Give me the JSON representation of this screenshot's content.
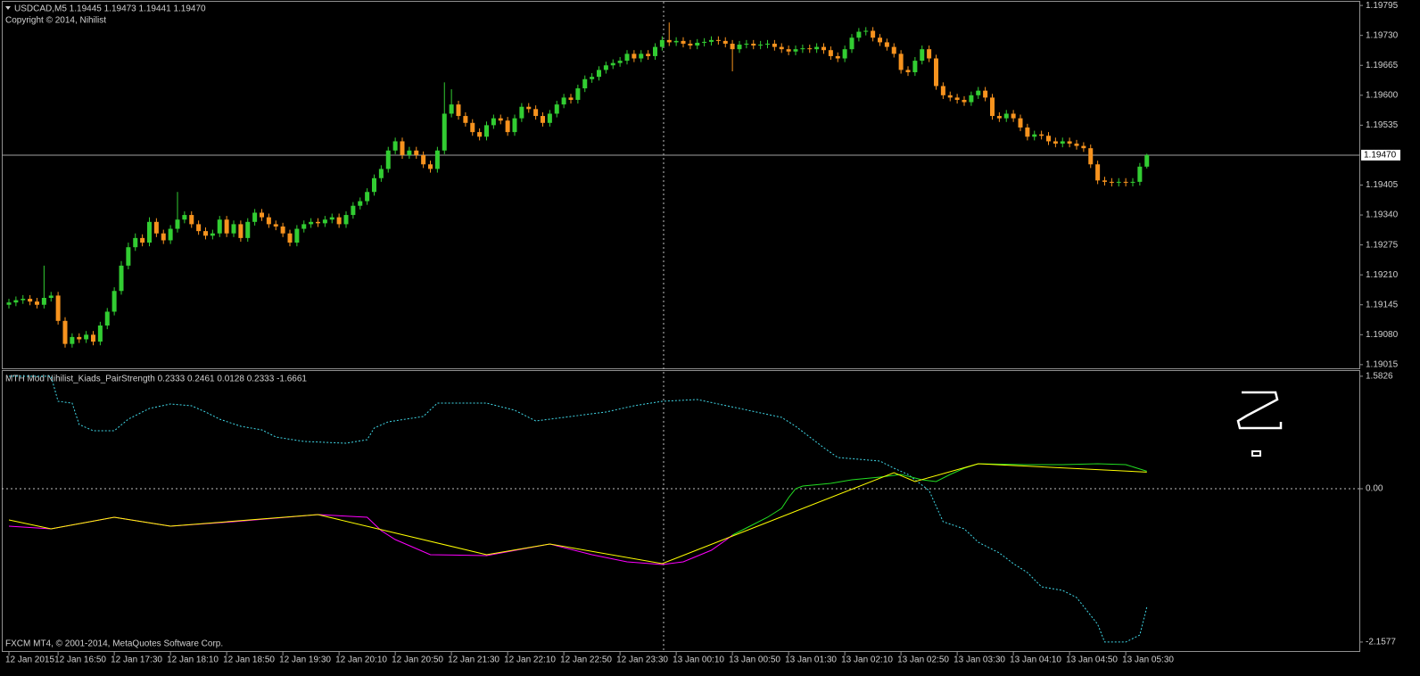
{
  "chart_data": [
    {
      "type": "candlestick",
      "title": "USDCAD,M5  1.19445 1.19473 1.19441 1.19470",
      "subtitle": "Copyright © 2014, Nihilist",
      "up_color": "#32cd32",
      "down_color": "#f7931e",
      "ylim": [
        1.19007,
        1.19803
      ],
      "yticks": [
        1.19795,
        {
          "value": 1.1973,
          "label": "1.19730"
        },
        1.19665,
        {
          "value": 1.196,
          "label": "1.19600"
        },
        1.19535,
        1.19405,
        {
          "value": 1.1934,
          "label": "1.19340"
        },
        1.19275,
        {
          "value": 1.1921,
          "label": "1.19210"
        },
        1.19145,
        {
          "value": 1.1908,
          "label": "1.19080"
        },
        1.19015
      ],
      "bid_line": {
        "value": 1.1947,
        "label": "1.19470"
      },
      "open": [
        1.19145,
        1.1915,
        1.19155,
        1.19158,
        1.19152,
        1.19145,
        1.1916,
        1.19165,
        1.1911,
        1.1906,
        1.19075,
        1.1907,
        1.1908,
        1.19065,
        1.191,
        1.1913,
        1.19175,
        1.1923,
        1.1927,
        1.1929,
        1.1928,
        1.19325,
        1.193,
        1.19285,
        1.1931,
        1.1933,
        1.1934,
        1.1932,
        1.19305,
        1.19295,
        1.193,
        1.1933,
        1.193,
        1.1932,
        1.1929,
        1.19325,
        1.19345,
        1.19335,
        1.1932,
        1.19315,
        1.193,
        1.1928,
        1.1931,
        1.1932,
        1.19325,
        1.19322,
        1.1933,
        1.19335,
        1.1932,
        1.1934,
        1.1936,
        1.1937,
        1.1939,
        1.1942,
        1.1944,
        1.1948,
        1.195,
        1.1947,
        1.1948,
        1.1947,
        1.1945,
        1.1944,
        1.1948,
        1.1956,
        1.1958,
        1.19555,
        1.1954,
        1.1952,
        1.1951,
        1.19535,
        1.1955,
        1.19545,
        1.1952,
        1.1955,
        1.19575,
        1.1957,
        1.19555,
        1.1954,
        1.1956,
        1.1958,
        1.19595,
        1.1959,
        1.19615,
        1.19635,
        1.1964,
        1.19655,
        1.19665,
        1.1967,
        1.19675,
        1.1969,
        1.1968,
        1.1969,
        1.19685,
        1.19705,
        1.1972,
        1.19715,
        1.19718,
        1.19712,
        1.19708,
        1.19714,
        1.19716,
        1.1972,
        1.19718,
        1.19712,
        1.197,
        1.1971,
        1.19712,
        1.19708,
        1.1971,
        1.19712,
        1.19705,
        1.197,
        1.19695,
        1.197,
        1.19702,
        1.197,
        1.19705,
        1.19698,
        1.19685,
        1.1968,
        1.197,
        1.19725,
        1.19738,
        1.1974,
        1.19725,
        1.19715,
        1.19705,
        1.1969,
        1.19655,
        1.1965,
        1.19675,
        1.197,
        1.1968,
        1.1962,
        1.196,
        1.19595,
        1.1959,
        1.19585,
        1.196,
        1.1961,
        1.19595,
        1.19555,
        1.1955,
        1.1956,
        1.1955,
        1.1953,
        1.1951,
        1.19515,
        1.19512,
        1.195,
        1.19495,
        1.195,
        1.19495,
        1.1949,
        1.19485,
        1.1945,
        1.19415,
        1.19412,
        1.1941,
        1.19412,
        1.1941,
        1.19412,
        1.19445
      ],
      "high": [
        1.19158,
        1.19163,
        1.19166,
        1.19166,
        1.1916,
        1.1923,
        1.19173,
        1.19173,
        1.19118,
        1.19083,
        1.19083,
        1.19088,
        1.19088,
        1.19108,
        1.19138,
        1.19183,
        1.1924,
        1.1928,
        1.193,
        1.19298,
        1.19335,
        1.19333,
        1.19308,
        1.19318,
        1.1939,
        1.19348,
        1.19348,
        1.19328,
        1.19313,
        1.19308,
        1.19338,
        1.19338,
        1.19328,
        1.19328,
        1.19333,
        1.19353,
        1.19353,
        1.19343,
        1.19328,
        1.19323,
        1.19308,
        1.19318,
        1.19328,
        1.19333,
        1.19333,
        1.19338,
        1.19343,
        1.19343,
        1.19348,
        1.19368,
        1.19378,
        1.19398,
        1.19428,
        1.19448,
        1.19488,
        1.19508,
        1.19508,
        1.19488,
        1.19488,
        1.19478,
        1.19458,
        1.19488,
        1.19628,
        1.19613,
        1.19588,
        1.19563,
        1.19548,
        1.19528,
        1.19543,
        1.19558,
        1.19558,
        1.19553,
        1.19558,
        1.19583,
        1.19583,
        1.19578,
        1.19563,
        1.19568,
        1.19588,
        1.19603,
        1.19603,
        1.19623,
        1.19643,
        1.19648,
        1.19663,
        1.19673,
        1.19678,
        1.19683,
        1.19698,
        1.19698,
        1.19698,
        1.19698,
        1.19713,
        1.19728,
        1.19758,
        1.19726,
        1.19726,
        1.1972,
        1.19722,
        1.19724,
        1.19728,
        1.19728,
        1.19726,
        1.1972,
        1.19718,
        1.1972,
        1.1972,
        1.19718,
        1.1972,
        1.1972,
        1.19713,
        1.19708,
        1.19708,
        1.1971,
        1.1971,
        1.19713,
        1.19713,
        1.19706,
        1.19693,
        1.19708,
        1.19733,
        1.19746,
        1.19748,
        1.19748,
        1.19733,
        1.19723,
        1.19713,
        1.19698,
        1.19663,
        1.19683,
        1.19708,
        1.19708,
        1.19688,
        1.19628,
        1.19608,
        1.19603,
        1.19598,
        1.19608,
        1.19618,
        1.19618,
        1.19603,
        1.19563,
        1.19568,
        1.19568,
        1.19558,
        1.19538,
        1.19523,
        1.19523,
        1.1952,
        1.19508,
        1.19508,
        1.19508,
        1.19503,
        1.19498,
        1.19493,
        1.19458,
        1.19423,
        1.1942,
        1.1942,
        1.1942,
        1.1942,
        1.19453,
        1.19473
      ],
      "low": [
        1.19137,
        1.19142,
        1.19147,
        1.19144,
        1.19137,
        1.19137,
        1.19152,
        1.19102,
        1.19052,
        1.19052,
        1.19062,
        1.19062,
        1.19057,
        1.19057,
        1.19092,
        1.19122,
        1.19167,
        1.19222,
        1.19262,
        1.19272,
        1.19272,
        1.19292,
        1.19277,
        1.19277,
        1.19302,
        1.19322,
        1.19312,
        1.19297,
        1.19287,
        1.19287,
        1.19292,
        1.19292,
        1.19292,
        1.19282,
        1.19282,
        1.19317,
        1.19327,
        1.19312,
        1.19307,
        1.19292,
        1.19272,
        1.19272,
        1.19302,
        1.19312,
        1.19314,
        1.19314,
        1.19322,
        1.19312,
        1.19312,
        1.19332,
        1.19352,
        1.19362,
        1.19382,
        1.19412,
        1.19432,
        1.19472,
        1.19462,
        1.19462,
        1.19462,
        1.19442,
        1.19432,
        1.19432,
        1.19472,
        1.19552,
        1.19547,
        1.19532,
        1.19512,
        1.19502,
        1.19502,
        1.19527,
        1.19537,
        1.19512,
        1.19512,
        1.19542,
        1.19562,
        1.19547,
        1.19532,
        1.19532,
        1.19552,
        1.19572,
        1.19582,
        1.19582,
        1.19607,
        1.19627,
        1.19632,
        1.19647,
        1.19657,
        1.19662,
        1.19667,
        1.19672,
        1.19672,
        1.19677,
        1.19677,
        1.19697,
        1.19707,
        1.19707,
        1.19704,
        1.197,
        1.197,
        1.19706,
        1.19708,
        1.1971,
        1.19704,
        1.19652,
        1.19692,
        1.19702,
        1.197,
        1.197,
        1.19702,
        1.19697,
        1.19692,
        1.19687,
        1.19687,
        1.19692,
        1.19692,
        1.19692,
        1.1969,
        1.19677,
        1.19672,
        1.19672,
        1.19692,
        1.19717,
        1.1973,
        1.19717,
        1.19707,
        1.19697,
        1.19682,
        1.19647,
        1.19642,
        1.19642,
        1.19667,
        1.19672,
        1.19612,
        1.19592,
        1.19587,
        1.19582,
        1.19577,
        1.19577,
        1.19592,
        1.19587,
        1.19547,
        1.19542,
        1.19542,
        1.19542,
        1.19522,
        1.19502,
        1.19502,
        1.19504,
        1.19492,
        1.19487,
        1.19487,
        1.19487,
        1.19482,
        1.19477,
        1.19442,
        1.19407,
        1.19404,
        1.19402,
        1.19402,
        1.19402,
        1.19402,
        1.19404,
        1.19441
      ],
      "close": [
        1.1915,
        1.19155,
        1.19158,
        1.19152,
        1.19145,
        1.1916,
        1.19165,
        1.1911,
        1.1906,
        1.19075,
        1.1907,
        1.1908,
        1.19065,
        1.191,
        1.1913,
        1.19175,
        1.1923,
        1.1927,
        1.1929,
        1.1928,
        1.19325,
        1.193,
        1.19285,
        1.1931,
        1.1933,
        1.1934,
        1.1932,
        1.19305,
        1.19295,
        1.193,
        1.1933,
        1.193,
        1.1932,
        1.1929,
        1.19325,
        1.19345,
        1.19335,
        1.1932,
        1.19315,
        1.193,
        1.1928,
        1.1931,
        1.1932,
        1.19325,
        1.19322,
        1.1933,
        1.19335,
        1.1932,
        1.1934,
        1.1936,
        1.1937,
        1.1939,
        1.1942,
        1.1944,
        1.1948,
        1.195,
        1.1947,
        1.1948,
        1.1947,
        1.1945,
        1.1944,
        1.1948,
        1.1956,
        1.1958,
        1.19555,
        1.1954,
        1.1952,
        1.1951,
        1.19535,
        1.1955,
        1.19545,
        1.1952,
        1.1955,
        1.19575,
        1.1957,
        1.19555,
        1.1954,
        1.1956,
        1.1958,
        1.19595,
        1.1959,
        1.19615,
        1.19635,
        1.1964,
        1.19655,
        1.19665,
        1.1967,
        1.19675,
        1.1969,
        1.1968,
        1.1969,
        1.19685,
        1.19705,
        1.1972,
        1.19715,
        1.19718,
        1.19712,
        1.19708,
        1.19714,
        1.19716,
        1.1972,
        1.19718,
        1.19712,
        1.197,
        1.1971,
        1.19712,
        1.19708,
        1.1971,
        1.19712,
        1.19705,
        1.197,
        1.19695,
        1.197,
        1.19702,
        1.197,
        1.19705,
        1.19698,
        1.19685,
        1.1968,
        1.197,
        1.19725,
        1.19738,
        1.1974,
        1.19725,
        1.19715,
        1.19705,
        1.1969,
        1.19655,
        1.1965,
        1.19675,
        1.197,
        1.1968,
        1.1962,
        1.196,
        1.19595,
        1.1959,
        1.19585,
        1.196,
        1.1961,
        1.19595,
        1.19555,
        1.1955,
        1.1956,
        1.1955,
        1.1953,
        1.1951,
        1.19515,
        1.19512,
        1.195,
        1.19495,
        1.195,
        1.19495,
        1.1949,
        1.19485,
        1.1945,
        1.19415,
        1.19412,
        1.1941,
        1.19412,
        1.1941,
        1.19412,
        1.19445,
        1.1947
      ]
    },
    {
      "type": "line",
      "title": "MTH Mod Nihilist_Kiads_PairStrength 0.2333 0.2461 0.0128 0.2333 -1.6661",
      "footer": "FXCM MT4, © 2001-2014, MetaQuotes Software Corp.",
      "ylim": [
        -2.284,
        1.669
      ],
      "yticks": [
        1.5826,
        {
          "value": 0,
          "label": "0.00"
        },
        -2.1577
      ],
      "levels": [
        0
      ],
      "xlim": [
        -1.016,
        192.254
      ],
      "xticks": [
        {
          "value": 0,
          "label": "12 Jan 2015"
        },
        {
          "value": 7,
          "label": "12 Jan 16:50"
        },
        {
          "value": 15,
          "label": "12 Jan 17:30"
        },
        {
          "value": 23,
          "label": "12 Jan 18:10"
        },
        {
          "value": 31,
          "label": "12 Jan 18:50"
        },
        {
          "value": 39,
          "label": "12 Jan 19:30"
        },
        {
          "value": 47,
          "label": "12 Jan 20:10"
        },
        {
          "value": 55,
          "label": "12 Jan 20:50"
        },
        {
          "value": 63,
          "label": "12 Jan 21:30"
        },
        {
          "value": 71,
          "label": "12 Jan 22:10"
        },
        {
          "value": 79,
          "label": "12 Jan 22:50"
        },
        {
          "value": 87,
          "label": "12 Jan 23:30"
        },
        {
          "value": 95,
          "label": "13 Jan 00:10"
        },
        {
          "value": 103,
          "label": "13 Jan 00:50"
        },
        {
          "value": 111,
          "label": "13 Jan 01:30"
        },
        {
          "value": 119,
          "label": "13 Jan 02:10"
        },
        {
          "value": 127,
          "label": "13 Jan 02:50"
        },
        {
          "value": 135,
          "label": "13 Jan 03:30"
        },
        {
          "value": 143,
          "label": "13 Jan 04:10"
        },
        {
          "value": 151,
          "label": "13 Jan 04:50"
        },
        {
          "value": 159,
          "label": "13 Jan 05:30"
        }
      ],
      "series": [
        {
          "color": "#40d8e8",
          "style": "dotted",
          "x": [
            0,
            6,
            7,
            9,
            10,
            12,
            15,
            17,
            20,
            23,
            26,
            28,
            30,
            33,
            36,
            38,
            42,
            48,
            51,
            52,
            54,
            59,
            61,
            68,
            72,
            75,
            80,
            85,
            89,
            93,
            98,
            104,
            110,
            112,
            114,
            116,
            118,
            124,
            126,
            128,
            131,
            133,
            136,
            138,
            141,
            143,
            145,
            147,
            150,
            152,
            153,
            155,
            156,
            159,
            161,
            162
          ],
          "values": [
            1.5826,
            1.5826,
            1.2299,
            1.2048,
            0.9036,
            0.8158,
            0.8158,
            0.9789,
            1.1295,
            1.1923,
            1.1672,
            1.0793,
            0.9789,
            0.8785,
            0.8283,
            0.7279,
            0.6652,
            0.6401,
            0.6903,
            0.8534,
            0.9413,
            1.0166,
            1.2048,
            1.2048,
            1.1044,
            0.9538,
            1.0166,
            1.0793,
            1.1672,
            1.2299,
            1.255,
            1.1295,
            1.004,
            0.8785,
            0.7279,
            0.5773,
            0.4393,
            0.3891,
            0.2887,
            0.2008,
            -0.0251,
            -0.4644,
            -0.5648,
            -0.753,
            -0.9036,
            -1.0542,
            -1.1797,
            -1.3805,
            -1.4307,
            -1.5311,
            -1.6566,
            -1.9076,
            -2.1577,
            -2.1577,
            -2.0582,
            -1.6661
          ]
        },
        {
          "color": "#ff00ff",
          "style": "solid",
          "x": [
            0,
            6,
            15,
            23,
            32,
            44,
            51,
            53,
            55,
            60,
            68,
            77,
            83,
            88,
            93,
            96,
            100,
            102,
            103
          ],
          "values": [
            -0.5271,
            -0.5648,
            -0.4016,
            -0.5271,
            -0.4644,
            -0.364,
            -0.4016,
            -0.5899,
            -0.7154,
            -0.9287,
            -0.9413,
            -0.7781,
            -0.9287,
            -1.0291,
            -1.0668,
            -1.0291,
            -0.866,
            -0.7279,
            -0.6526
          ]
        },
        {
          "color": "#22dd22",
          "style": "solid",
          "x": [
            103,
            106,
            108,
            110,
            111,
            112,
            113,
            117,
            120,
            124,
            127,
            130,
            132,
            134,
            136,
            138,
            145,
            150,
            155,
            159,
            162
          ],
          "values": [
            -0.6526,
            -0.502,
            -0.4016,
            -0.2761,
            -0.1255,
            0,
            0.0377,
            0.0753,
            0.1255,
            0.1632,
            0.2008,
            0.1255,
            0.1004,
            0.2008,
            0.2887,
            0.3514,
            0.3389,
            0.3389,
            0.3514,
            0.3389,
            0.2461
          ]
        },
        {
          "color": "#ffff00",
          "style": "solid",
          "x": [
            0,
            6,
            15,
            23,
            44,
            68,
            77,
            93,
            126,
            129,
            138,
            162
          ],
          "values": [
            -0.4393,
            -0.5648,
            -0.4016,
            -0.5271,
            -0.364,
            -0.9287,
            -0.7781,
            -1.0542,
            0.2259,
            0.1004,
            0.3514,
            0.2333
          ]
        }
      ]
    }
  ]
}
